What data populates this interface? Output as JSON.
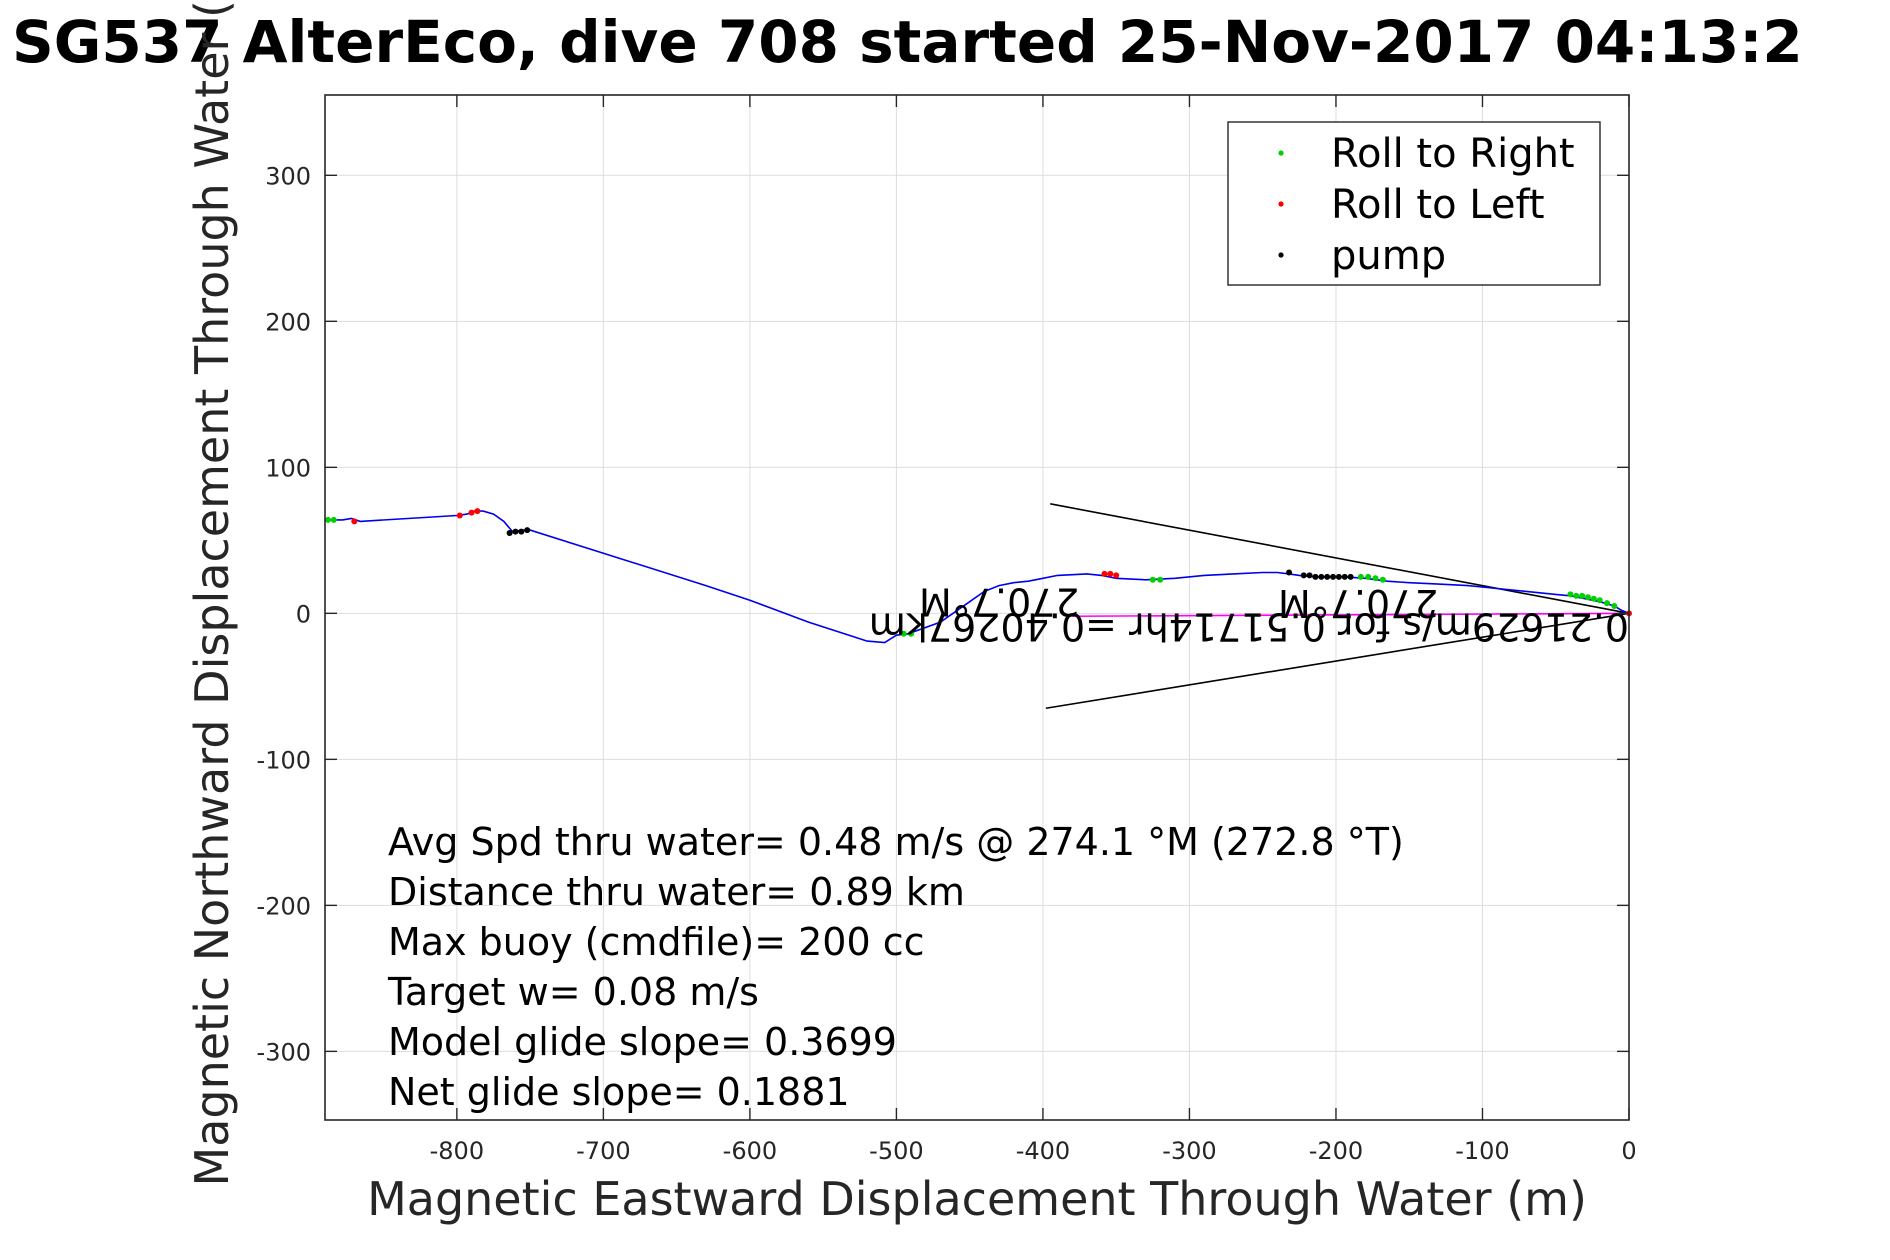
{
  "chart_data": {
    "type": "scatter",
    "title": "SG537 AlterEco, dive 708 started 25-Nov-2017 04:13:2",
    "xlabel": "Magnetic Eastward Displacement Through Water (m)",
    "ylabel": "Magnetic Northward Displacement Through Water (",
    "xlim": [
      -890,
      0
    ],
    "ylim": [
      -347,
      355
    ],
    "xticks": [
      -800,
      -700,
      -600,
      -500,
      -400,
      -300,
      -200,
      -100,
      0
    ],
    "yticks": [
      300,
      200,
      100,
      0,
      -100,
      -200,
      -300
    ],
    "grid": true,
    "legend_position": "top-right",
    "colors": {
      "track": "#0000ee",
      "roll_right": "#00d000",
      "roll_left": "#ff0000",
      "pump": "#000033",
      "current_line": "#ff00ff",
      "cone": "#000000",
      "grid": "#dddddd"
    },
    "track": {
      "x": [
        -890,
        -878,
        -872,
        -866,
        -800,
        -793,
        -788,
        -782,
        -775,
        -768,
        -762,
        -755,
        -750,
        -630,
        -600,
        -560,
        -520,
        -508,
        -500,
        -492,
        -470,
        -450,
        -440,
        -430,
        -420,
        -410,
        -400,
        -390,
        -370,
        -360,
        -350,
        -330,
        -310,
        -290,
        -270,
        -250,
        -240,
        -232,
        -225,
        -215,
        -205,
        -195,
        -180,
        -165,
        -150,
        -130,
        -110,
        -90,
        -70,
        -50,
        -40,
        -30,
        -20,
        -10,
        -5,
        0
      ],
      "y": [
        64,
        64,
        65,
        63,
        67,
        68,
        70,
        70,
        68,
        63,
        56,
        57,
        57,
        19,
        9,
        -6,
        -19,
        -20,
        -15,
        -14,
        -6,
        8,
        15,
        19,
        21,
        22,
        24,
        26,
        27,
        26,
        24,
        23,
        24,
        26,
        27,
        28,
        28,
        27,
        26,
        25,
        25,
        25,
        24,
        22,
        21,
        20,
        19,
        17,
        15,
        13,
        12,
        10,
        8,
        5,
        2,
        0
      ]
    },
    "series": [
      {
        "name": "Roll to Right",
        "marker": "dot",
        "color": "#00d000",
        "x": [
          -888,
          -884,
          -495,
          -490,
          -325,
          -320,
          -183,
          -178,
          -173,
          -168,
          -40,
          -36,
          -32,
          -28,
          -24,
          -20,
          -15,
          -10
        ],
        "y": [
          64,
          64,
          -14,
          -14,
          23,
          23,
          25,
          25,
          24,
          23,
          13,
          12,
          12,
          11,
          10,
          9,
          7,
          5
        ]
      },
      {
        "name": "Roll to Left",
        "marker": "dot",
        "color": "#ff0000",
        "x": [
          -870,
          -798,
          -790,
          -786,
          -358,
          -354,
          -350,
          0
        ],
        "y": [
          63,
          67,
          69,
          70,
          27,
          27,
          26,
          0
        ]
      },
      {
        "name": "pump",
        "marker": "dot",
        "color": "#000000",
        "x": [
          -764,
          -760,
          -756,
          -752,
          -232,
          -222,
          -218,
          -214,
          -210,
          -206,
          -202,
          -198,
          -194,
          -190
        ],
        "y": [
          55,
          56,
          56,
          57,
          28,
          26,
          26,
          25,
          25,
          25,
          25,
          25,
          25,
          25
        ]
      }
    ],
    "current_line": {
      "x": [
        -380,
        0
      ],
      "y": [
        -2,
        0
      ]
    },
    "cone": {
      "upper": {
        "x": [
          -395,
          0
        ],
        "y": [
          75,
          0
        ]
      },
      "lower": {
        "x": [
          -398,
          0
        ],
        "y": [
          -65,
          0
        ]
      }
    },
    "annotations": [
      {
        "text": "0.21629m/s for 0.51714hr =0.40267km",
        "x": 0,
        "y": 0,
        "rotated": true
      },
      {
        "text": "270.7°M",
        "x": -130,
        "y": 16,
        "rotated": true
      },
      {
        "text": "270.7°M",
        "x": -375,
        "y": 17,
        "rotated": true
      }
    ],
    "stats": [
      "Avg Spd thru water=  0.48 m/s @ 274.1 °M (272.8 °T)",
      "Distance thru water=  0.89 km",
      "Max buoy (cmdfile)= 200 cc",
      "Target w= 0.08 m/s",
      "Model glide slope= 0.3699",
      "Net glide slope= 0.1881"
    ]
  }
}
